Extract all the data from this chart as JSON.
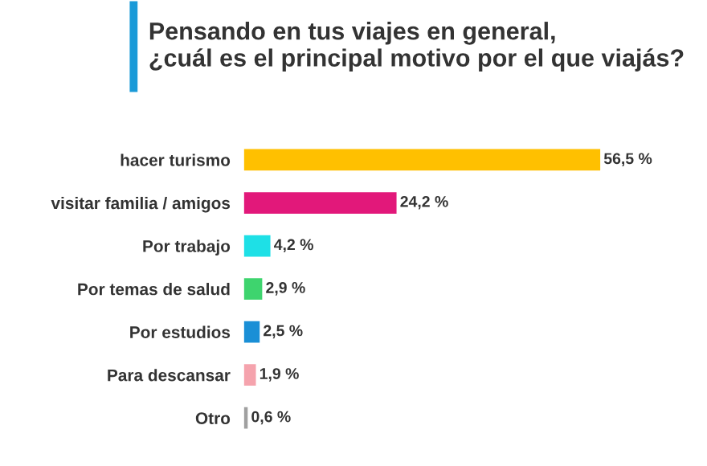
{
  "chart_data": {
    "type": "bar",
    "orientation": "horizontal",
    "title": "Pensando en tus viajes en general,\n¿cuál es el principal motivo por el que viajás?",
    "categories": [
      "hacer turismo",
      "visitar familia / amigos",
      "Por trabajo",
      "Por temas de salud",
      "Por estudios",
      "Para descansar",
      "Otro"
    ],
    "values": [
      56.5,
      24.2,
      4.2,
      2.9,
      2.5,
      1.9,
      0.6
    ],
    "colors": [
      "#ffc000",
      "#e2187a",
      "#1ee0e6",
      "#3ed46e",
      "#1a8fd6",
      "#f5a3ad",
      "#a0a0a0"
    ],
    "value_labels": [
      "56,5 %",
      "24,2 %",
      "4,2 %",
      "2,9 %",
      "2,5 %",
      "1,9 %",
      "0,6 %"
    ],
    "grid": false,
    "legend": false
  }
}
